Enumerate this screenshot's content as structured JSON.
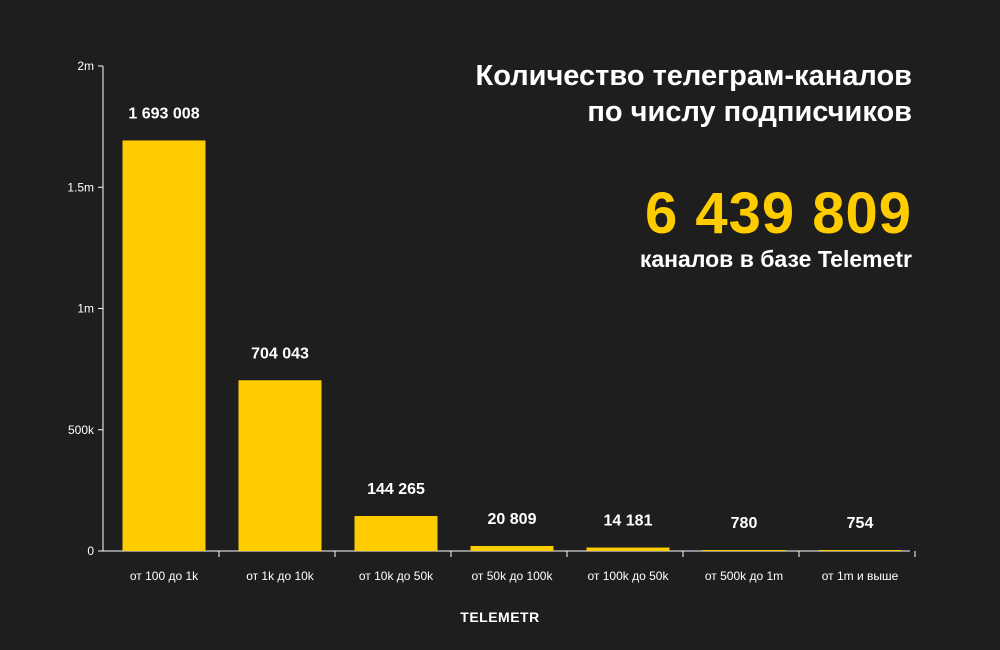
{
  "header": {
    "title_line1": "Количество телеграм-каналов",
    "title_line2": "по числу подписчиков",
    "total_value": "6 439 809",
    "total_label": "каналов в базе Telemetr"
  },
  "footer": {
    "brand": "TELEMETR"
  },
  "colors": {
    "background": "#1e1e1e",
    "bar": "#ffcc00",
    "text": "#ffffff",
    "axis": "#ffffff"
  },
  "chart_data": {
    "type": "bar",
    "categories": [
      "от 100 до 1k",
      "от 1k до 10k",
      "от 10k до 50k",
      "от 50k до 100k",
      "от 100k до 50k",
      "от 500k до 1m",
      "от 1m и выше"
    ],
    "values": [
      1693008,
      704043,
      144265,
      20809,
      14181,
      780,
      754
    ],
    "value_labels": [
      "1 693 008",
      "704 043",
      "144 265",
      "20 809",
      "14 181",
      "780",
      "754"
    ],
    "ylim": [
      0,
      2000000
    ],
    "yticks": [
      0,
      500000,
      1000000,
      1500000,
      2000000
    ],
    "ytick_labels": [
      "0",
      "500k",
      "1m",
      "1.5m",
      "2m"
    ],
    "title": "Количество телеграм-каналов по числу подписчиков",
    "xlabel": "",
    "ylabel": "",
    "grid": false,
    "legend": "none"
  }
}
